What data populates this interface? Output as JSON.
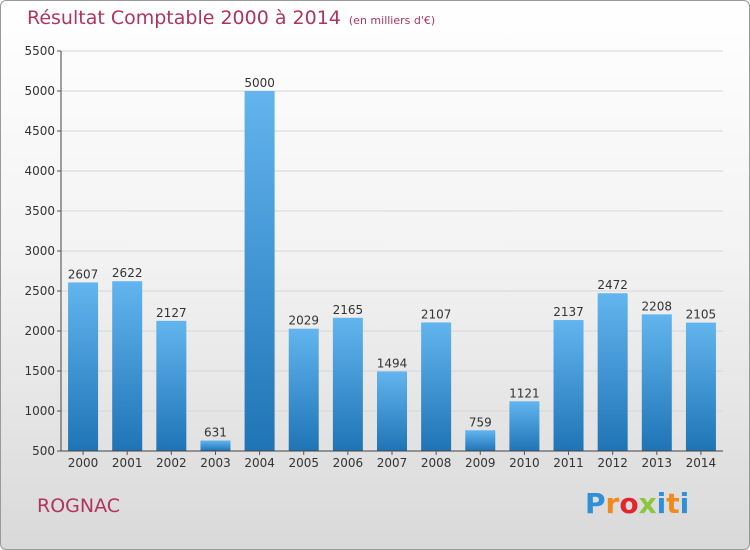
{
  "header": {
    "title": "Résultat Comptable 2000 à 2014",
    "subtitle": "(en milliers d'€)"
  },
  "footer": {
    "commune": "ROGNAC",
    "logo_text": "Proxiti"
  },
  "colors": {
    "title": "#b0345f",
    "bar_top": "#5fb3ec",
    "bar_bottom": "#1f76b8",
    "grid": "#d6d6d6"
  },
  "chart_data": {
    "type": "bar",
    "title": "Résultat Comptable 2000 à 2014",
    "subtitle": "(en milliers d'€)",
    "xlabel": "",
    "ylabel": "",
    "categories": [
      "2000",
      "2001",
      "2002",
      "2003",
      "2004",
      "2005",
      "2006",
      "2007",
      "2008",
      "2009",
      "2010",
      "2011",
      "2012",
      "2013",
      "2014"
    ],
    "values": [
      2607,
      2622,
      2127,
      631,
      5000,
      2029,
      2165,
      1494,
      2107,
      759,
      1121,
      2137,
      2472,
      2208,
      2105
    ],
    "ylim": [
      500,
      5500
    ],
    "yticks": [
      500,
      1000,
      1500,
      2000,
      2500,
      3000,
      3500,
      4000,
      4500,
      5000,
      5500
    ],
    "grid": true,
    "legend": "none"
  }
}
